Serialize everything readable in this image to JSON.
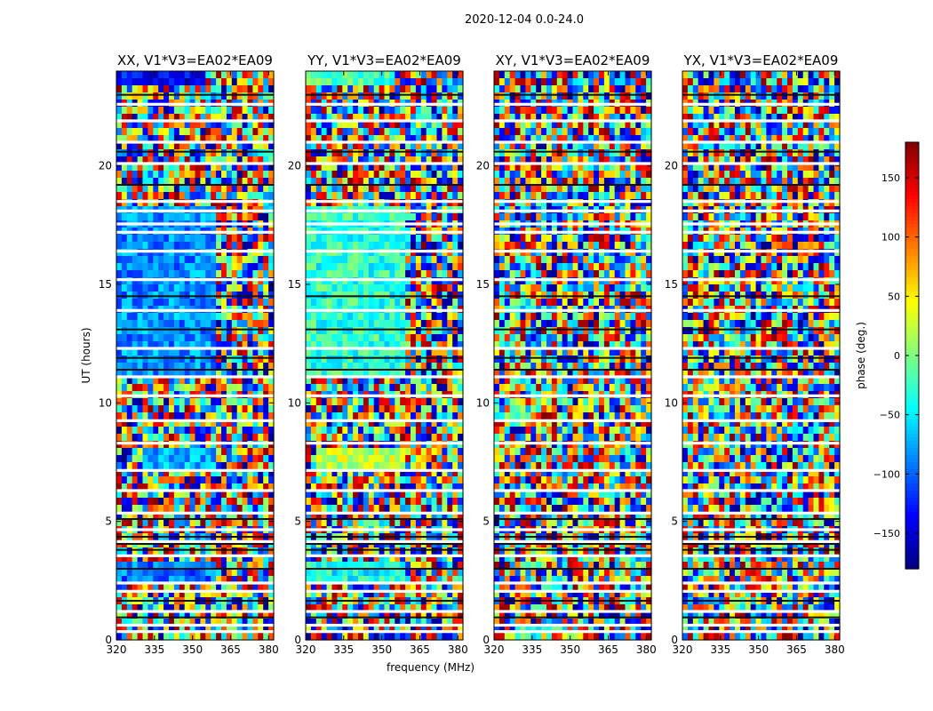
{
  "figure_title": "2020-12-04 0.0-24.0",
  "chart_data": [
    {
      "type": "heatmap",
      "title": "XX, V1*V3=EA02*EA09",
      "xlabel": "",
      "ylabel": "UT (hours)",
      "xlim": [
        320,
        382
      ],
      "ylim": [
        0,
        24
      ],
      "xticks": [
        320,
        335,
        350,
        365,
        380
      ],
      "yticks": [
        0,
        5,
        10,
        15,
        20
      ],
      "coherent_regions": [
        {
          "ut_start": 11.0,
          "ut_end": 18.3,
          "freq_start": 320,
          "freq_end": 360,
          "phase_deg": -85
        },
        {
          "ut_start": 2.5,
          "ut_end": 3.4,
          "freq_start": 320,
          "freq_end": 360,
          "phase_deg": -95
        },
        {
          "ut_start": 7.2,
          "ut_end": 8.2,
          "freq_start": 330,
          "freq_end": 360,
          "phase_deg": -70
        },
        {
          "ut_start": 23.3,
          "ut_end": 24.0,
          "freq_start": 320,
          "freq_end": 355,
          "phase_deg": -140
        }
      ]
    },
    {
      "type": "heatmap",
      "title": "YY, V1*V3=EA02*EA09",
      "xlabel": "frequency (MHz)",
      "ylabel": "",
      "xlim": [
        320,
        382
      ],
      "ylim": [
        0,
        24
      ],
      "xticks": [
        320,
        335,
        350,
        365,
        380
      ],
      "yticks": [
        0,
        5,
        10,
        15,
        20
      ],
      "coherent_regions": [
        {
          "ut_start": 11.0,
          "ut_end": 18.3,
          "freq_start": 320,
          "freq_end": 360,
          "phase_deg": -30
        },
        {
          "ut_start": 2.5,
          "ut_end": 3.4,
          "freq_start": 320,
          "freq_end": 360,
          "phase_deg": -40
        },
        {
          "ut_start": 7.2,
          "ut_end": 8.2,
          "freq_start": 325,
          "freq_end": 360,
          "phase_deg": 20
        },
        {
          "ut_start": 23.3,
          "ut_end": 24.0,
          "freq_start": 320,
          "freq_end": 355,
          "phase_deg": -20
        }
      ]
    },
    {
      "type": "heatmap",
      "title": "XY, V1*V3=EA02*EA09",
      "xlabel": "",
      "ylabel": "",
      "xlim": [
        320,
        382
      ],
      "ylim": [
        0,
        24
      ],
      "xticks": [
        320,
        335,
        350,
        365,
        380
      ],
      "yticks": [
        0,
        5,
        10,
        15,
        20
      ],
      "coherent_regions": []
    },
    {
      "type": "heatmap",
      "title": "YX, V1*V3=EA02*EA09",
      "xlabel": "",
      "ylabel": "",
      "xlim": [
        320,
        382
      ],
      "ylim": [
        0,
        24
      ],
      "xticks": [
        320,
        335,
        350,
        365,
        380
      ],
      "yticks": [
        0,
        5,
        10,
        15,
        20
      ],
      "coherent_regions": []
    }
  ],
  "colorbar": {
    "label": "phase (deg.)",
    "vmin": -180,
    "vmax": 180,
    "ticks": [
      -150,
      -100,
      -50,
      0,
      50,
      100,
      150
    ],
    "tick_labels": [
      "−150",
      "−100",
      "−50",
      "0",
      "50",
      "100",
      "150"
    ],
    "colormap": "jet"
  },
  "blank_ut_rows": [
    0.35,
    0.62,
    1.2,
    2.05,
    2.4,
    3.55,
    4.15,
    4.65,
    5.35,
    6.3,
    7.15,
    8.3,
    9.25,
    10.3,
    11.1,
    12.3,
    13.9,
    15.2,
    16.4,
    17.2,
    17.55,
    18.1,
    18.5,
    20.1,
    21.0,
    21.9,
    22.6
  ],
  "dark_ut_rows": [
    0.95,
    1.65,
    3.0,
    3.8,
    4.05,
    4.35,
    5.1,
    11.4,
    11.9,
    13.1,
    14.5,
    19.2,
    20.6,
    23.0
  ],
  "colors": {
    "spine": "#000000",
    "background": "#ffffff"
  }
}
